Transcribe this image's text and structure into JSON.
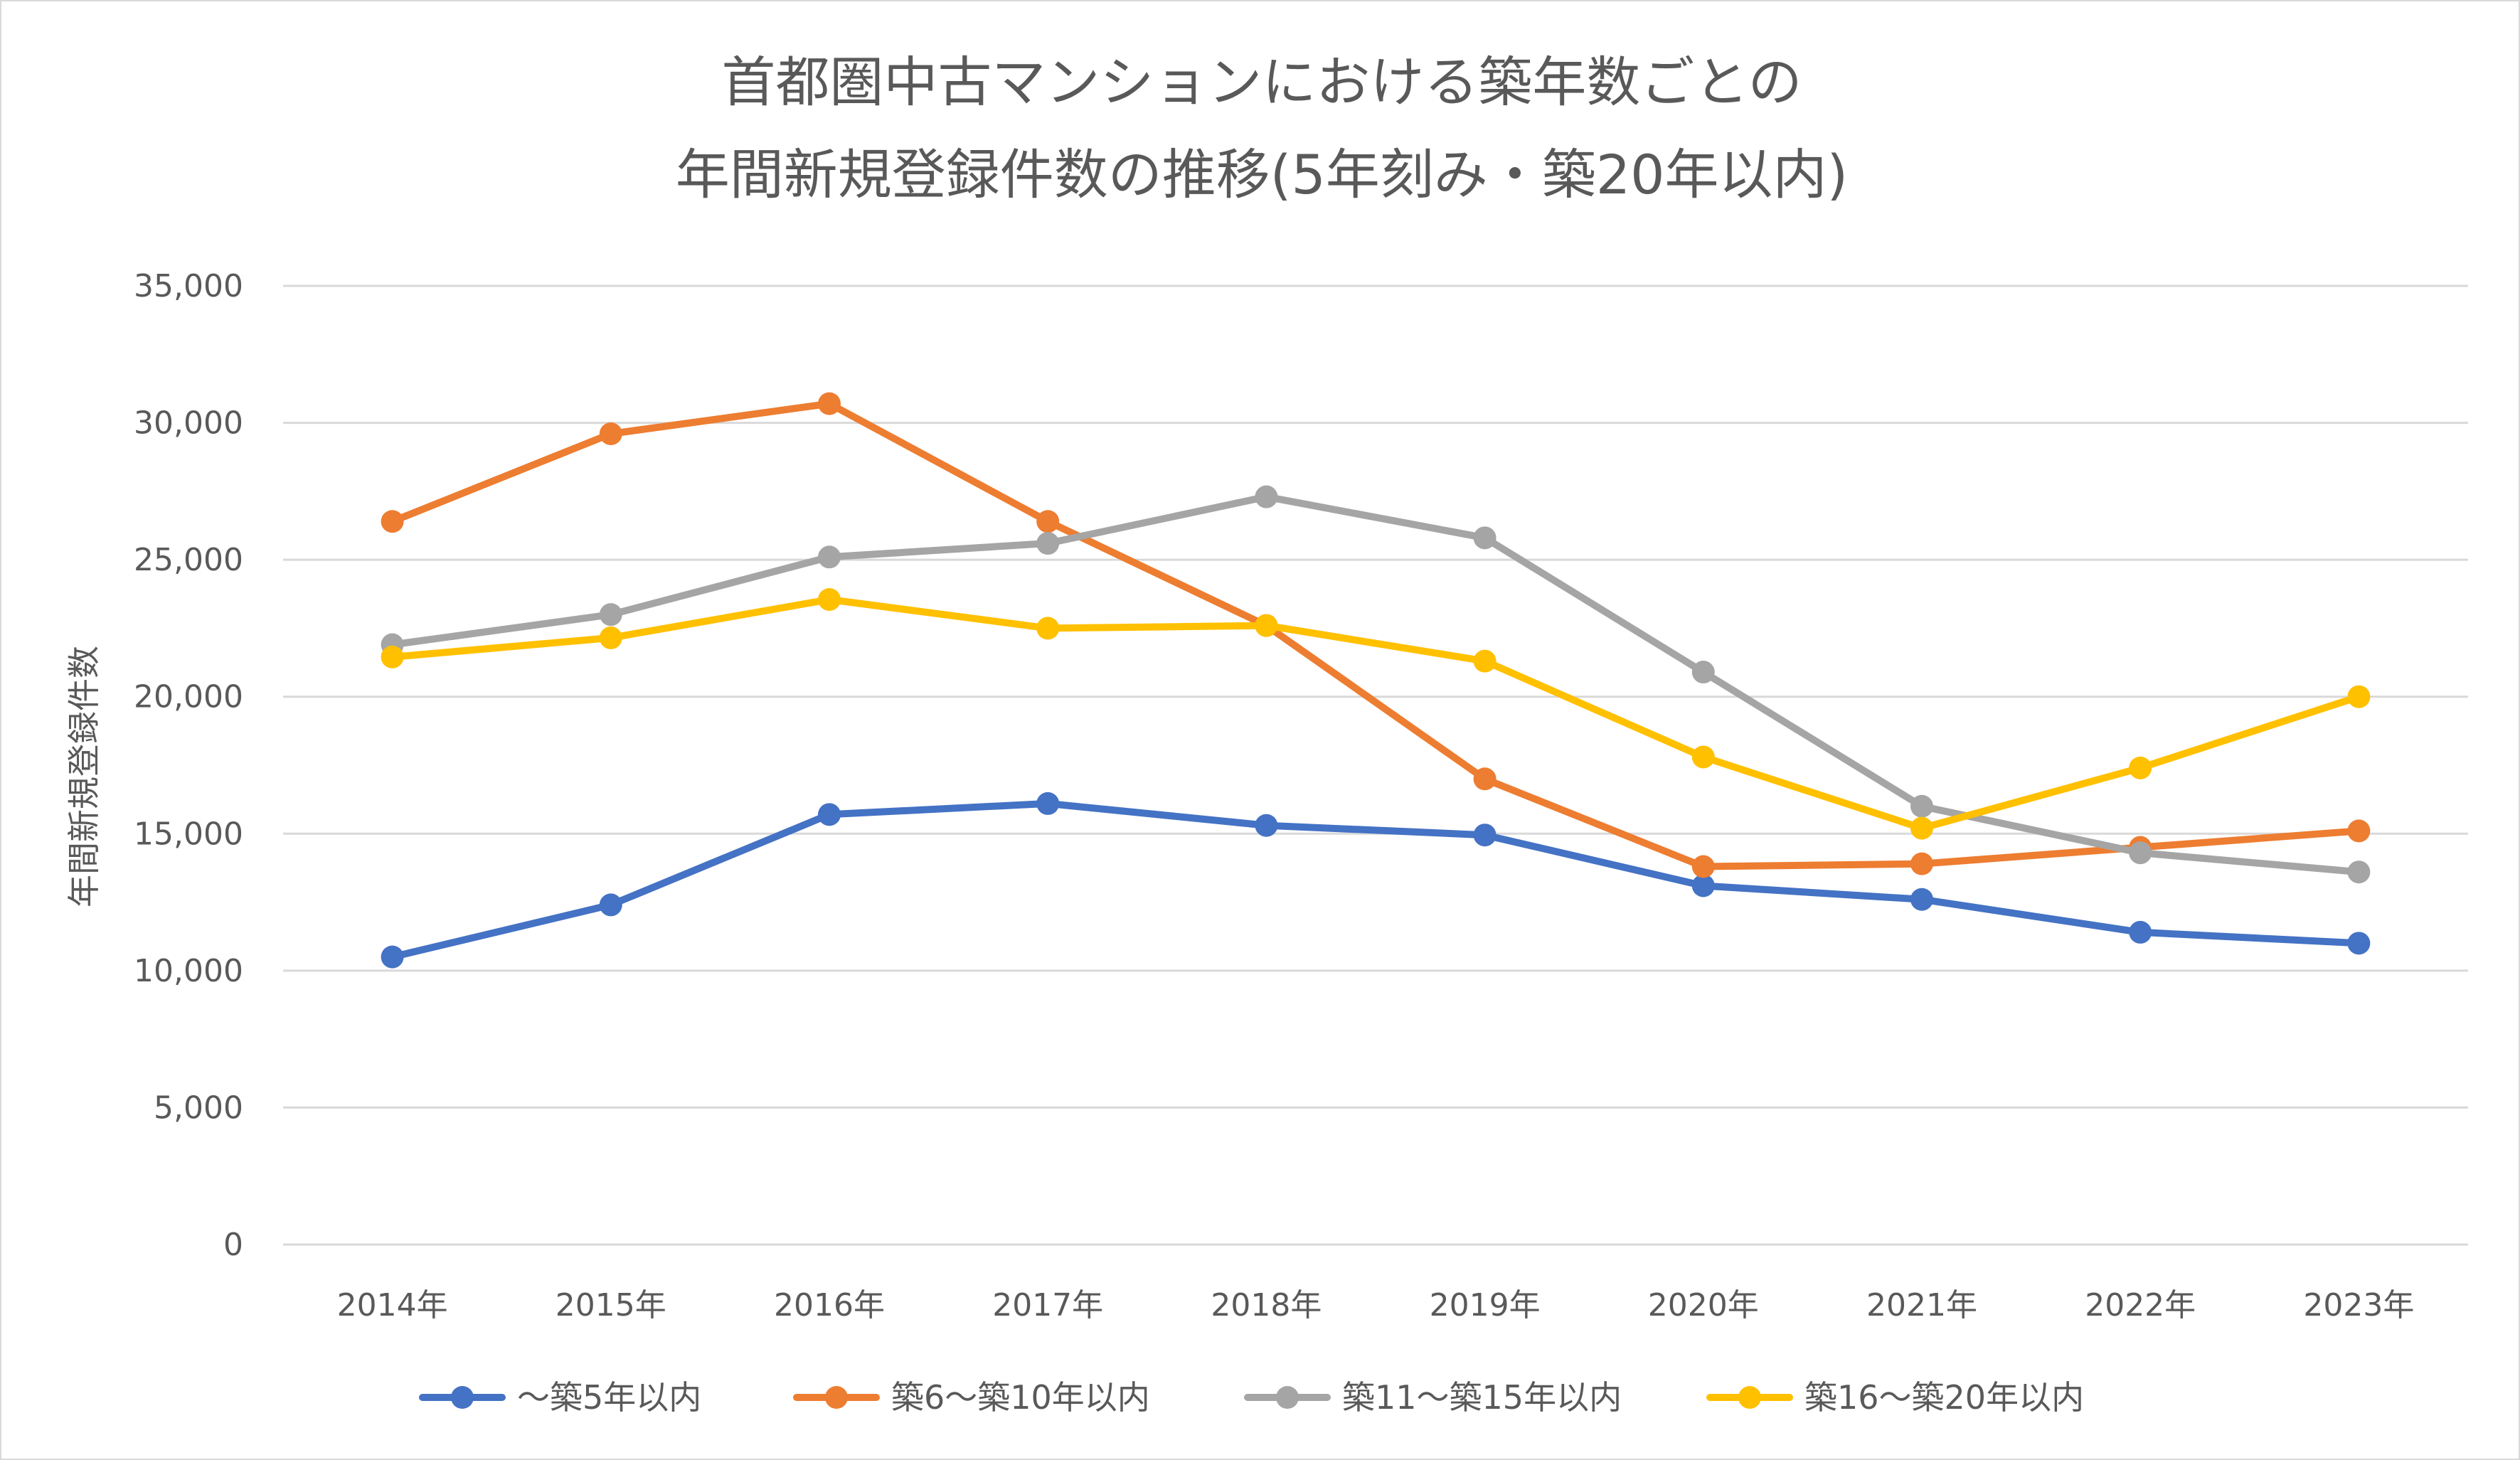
{
  "chart_data": {
    "type": "line",
    "title_lines": [
      "首都圏中古マンションにおける築年数ごとの",
      "年間新規登録件数の推移(5年刻み・築20年以内)"
    ],
    "ylabel": "年間新規登録件数",
    "xlabel": "",
    "categories": [
      "2014年",
      "2015年",
      "2016年",
      "2017年",
      "2018年",
      "2019年",
      "2020年",
      "2021年",
      "2022年",
      "2023年"
    ],
    "ylim": [
      0,
      35000
    ],
    "y_ticks": [
      0,
      5000,
      10000,
      15000,
      20000,
      25000,
      30000,
      35000
    ],
    "y_tick_labels": [
      "0",
      "5,000",
      "10,000",
      "15,000",
      "20,000",
      "25,000",
      "30,000",
      "35,000"
    ],
    "grid": true,
    "legend_position": "bottom",
    "series": [
      {
        "name": "～築5年以内",
        "color": "#4472C4",
        "values": [
          10500,
          12400,
          15700,
          16100,
          15300,
          14950,
          13100,
          12600,
          11400,
          11000
        ]
      },
      {
        "name": "築6～築10年以内",
        "color": "#ED7D31",
        "values": [
          26400,
          29600,
          30700,
          26400,
          22600,
          17000,
          13800,
          13900,
          14500,
          15100
        ]
      },
      {
        "name": "築11～築15年以内",
        "color": "#A5A5A5",
        "values": [
          21900,
          23000,
          25100,
          25600,
          27300,
          25800,
          20900,
          16000,
          14300,
          13600
        ]
      },
      {
        "name": "築16～築20年以内",
        "color": "#FFC000",
        "values": [
          21450,
          22150,
          23550,
          22500,
          22600,
          21300,
          17800,
          15200,
          17400,
          20000
        ]
      }
    ]
  }
}
